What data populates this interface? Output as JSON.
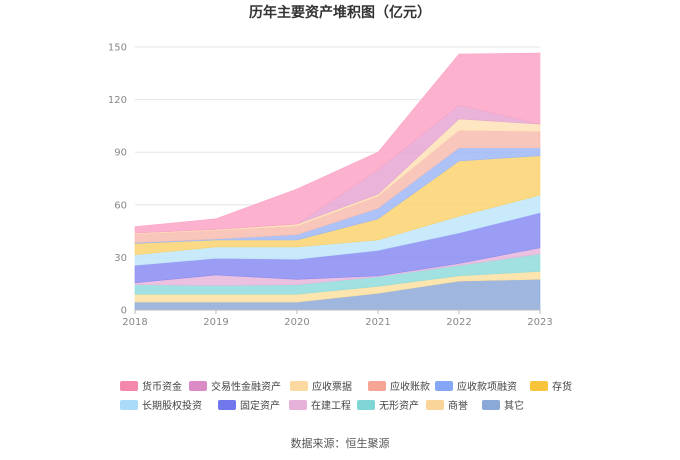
{
  "chart_data": {
    "type": "area",
    "stacked": true,
    "title": "历年主要资产堆积图（亿元）",
    "x": [
      "2018",
      "2019",
      "2020",
      "2021",
      "2022",
      "2023"
    ],
    "ylim": [
      0,
      150
    ],
    "yticks": [
      0,
      30,
      60,
      90,
      120,
      150
    ],
    "grid": true,
    "legend_position": "bottom",
    "series": [
      {
        "name": "其它",
        "color": "#8eaad8",
        "values": [
          4.5,
          4.5,
          4.5,
          9.5,
          16.5,
          17.5
        ]
      },
      {
        "name": "商誉",
        "color": "#fbe0a0",
        "values": [
          4.5,
          4.5,
          4.5,
          4.0,
          3.0,
          4.5
        ]
      },
      {
        "name": "无形资产",
        "color": "#92dcdc",
        "values": [
          5.5,
          5.0,
          5.5,
          5.5,
          6.0,
          10.0
        ]
      },
      {
        "name": "在建工程",
        "color": "#e8b6dc",
        "values": [
          1.0,
          6.0,
          3.0,
          0.5,
          1.0,
          3.5
        ]
      },
      {
        "name": "固定资产",
        "color": "#8a8cf2",
        "values": [
          10.0,
          9.5,
          11.5,
          14.5,
          17.5,
          20.0
        ]
      },
      {
        "name": "长期股权投资",
        "color": "#bfe6fa",
        "values": [
          6.0,
          6.5,
          7.0,
          6.0,
          9.5,
          10.0
        ]
      },
      {
        "name": "存货",
        "color": "#fbd26e",
        "values": [
          6.5,
          4.0,
          4.0,
          12.0,
          31.5,
          22.5
        ]
      },
      {
        "name": "应收款项融资",
        "color": "#9fb8f6",
        "values": [
          0.5,
          0.5,
          3.0,
          6.0,
          7.5,
          4.5
        ]
      },
      {
        "name": "应收账款",
        "color": "#f8bcb0",
        "values": [
          5.0,
          5.0,
          5.0,
          7.0,
          10.0,
          9.5
        ]
      },
      {
        "name": "应收票据",
        "color": "#fde2b6",
        "values": [
          0.5,
          0.5,
          1.0,
          1.0,
          6.5,
          4.0
        ]
      },
      {
        "name": "交易性金融资产",
        "color": "#e6a6d2",
        "values": [
          0.0,
          0.0,
          0.0,
          14.0,
          8.0,
          0.0
        ]
      },
      {
        "name": "货币资金",
        "color": "#fca4c6",
        "values": [
          3.5,
          6.0,
          20.0,
          10.0,
          29.0,
          40.5
        ]
      }
    ]
  },
  "legend_order": [
    "货币资金",
    "交易性金融资产",
    "应收票据",
    "应收账款",
    "应收款项融资",
    "存货",
    "长期股权投资",
    "固定资产",
    "在建工程",
    "无形资产",
    "商誉",
    "其它"
  ],
  "legend_colors": {
    "货币资金": "#f488ac",
    "交易性金融资产": "#dc8cc4",
    "应收票据": "#fcd9a0",
    "应收账款": "#f6a496",
    "应收款项融资": "#86a6f6",
    "存货": "#f8c43c",
    "长期股权投资": "#aadcfa",
    "固定资产": "#7076ec",
    "在建工程": "#e6b2da",
    "无形资产": "#80d6d6",
    "商誉": "#fad59a",
    "其它": "#8aa8d8"
  },
  "source": "数据来源：恒生聚源"
}
